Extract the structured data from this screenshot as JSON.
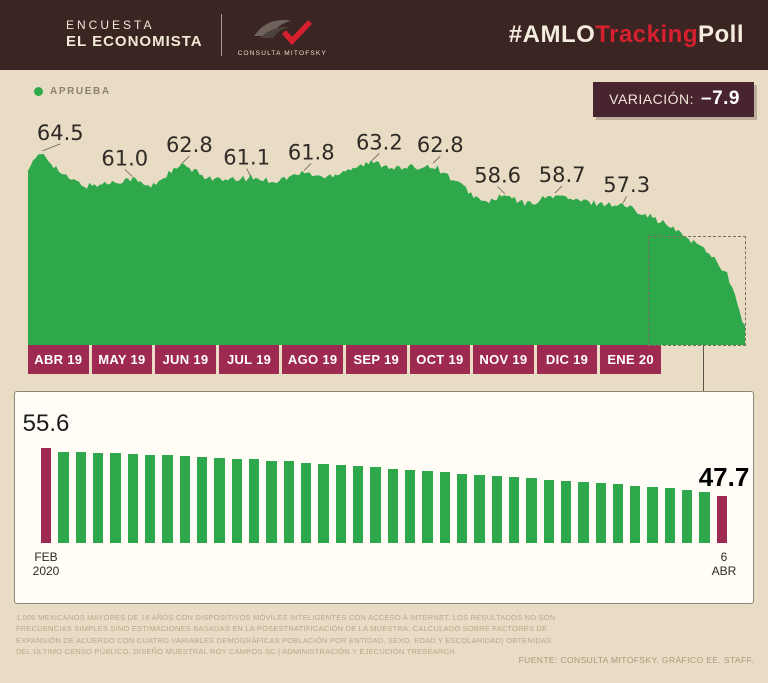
{
  "header": {
    "kicker": "ENCUESTA",
    "brand": "EL ECONOMISTA",
    "logo_caption": "CONSULTA MITOFSKY",
    "hashtag": {
      "part1": "#AMLO",
      "part2": "Tracking",
      "part3": "Poll"
    }
  },
  "legend": {
    "label": "APRUEBA",
    "color": "#2fa84c"
  },
  "variation": {
    "label": "VARIACIÓN:",
    "value": "–7.9"
  },
  "chart_data": [
    {
      "type": "area",
      "name": "AMLO approval daily tracking Apr 2019 - early 2020",
      "series_label": "APRUEBA",
      "fill_color": "#2fa84c",
      "x_labels": [
        "ABR 19",
        "MAY 19",
        "JUN 19",
        "JUL 19",
        "AGO 19",
        "SEP 19",
        "OCT 19",
        "NOV 19",
        "DIC 19",
        "ENE 20"
      ],
      "point_labels": [
        {
          "text": "64.5",
          "f": 0.045,
          "pf": 0.02
        },
        {
          "text": "61.0",
          "f": 0.135,
          "pf": 0.145
        },
        {
          "text": "62.8",
          "f": 0.225,
          "pf": 0.215
        },
        {
          "text": "61.1",
          "f": 0.305,
          "pf": 0.31
        },
        {
          "text": "61.8",
          "f": 0.395,
          "pf": 0.385
        },
        {
          "text": "63.2",
          "f": 0.49,
          "pf": 0.48
        },
        {
          "text": "62.8",
          "f": 0.575,
          "pf": 0.565
        },
        {
          "text": "58.6",
          "f": 0.655,
          "pf": 0.665
        },
        {
          "text": "58.7",
          "f": 0.745,
          "pf": 0.735
        },
        {
          "text": "57.3",
          "f": 0.835,
          "pf": 0.83
        }
      ],
      "anchors": [
        [
          0,
          62.5
        ],
        [
          0.02,
          64.5
        ],
        [
          0.05,
          61.3
        ],
        [
          0.08,
          59.9
        ],
        [
          0.11,
          60.3
        ],
        [
          0.145,
          61.0
        ],
        [
          0.17,
          59.7
        ],
        [
          0.195,
          61.6
        ],
        [
          0.215,
          62.8
        ],
        [
          0.245,
          61.3
        ],
        [
          0.275,
          60.6
        ],
        [
          0.31,
          61.1
        ],
        [
          0.345,
          60.6
        ],
        [
          0.385,
          61.8
        ],
        [
          0.415,
          61.1
        ],
        [
          0.45,
          62.4
        ],
        [
          0.48,
          63.2
        ],
        [
          0.52,
          62.3
        ],
        [
          0.565,
          62.8
        ],
        [
          0.6,
          60.3
        ],
        [
          0.635,
          57.6
        ],
        [
          0.665,
          58.6
        ],
        [
          0.695,
          57.4
        ],
        [
          0.735,
          58.7
        ],
        [
          0.765,
          57.9
        ],
        [
          0.8,
          57.5
        ],
        [
          0.83,
          57.3
        ],
        [
          0.86,
          56.2
        ],
        [
          0.89,
          54.6
        ],
        [
          0.92,
          52.8
        ],
        [
          0.95,
          50.8
        ],
        [
          0.975,
          47.8
        ],
        [
          1,
          40.5
        ]
      ],
      "ylim": [
        38,
        66
      ],
      "variation": -7.9
    },
    {
      "type": "bar",
      "name": "Daily approval Feb 2020 to Apr 6 2020",
      "bar_color": "#2fa84c",
      "highlight_color": "#9e2a52",
      "ylim": [
        40,
        58
      ],
      "values": [
        55.6,
        55.0,
        54.9,
        54.8,
        54.7,
        54.6,
        54.5,
        54.4,
        54.2,
        54.1,
        54.0,
        53.8,
        53.7,
        53.5,
        53.4,
        53.2,
        53.0,
        52.8,
        52.6,
        52.4,
        52.2,
        52.0,
        51.8,
        51.6,
        51.4,
        51.2,
        51.0,
        50.8,
        50.6,
        50.4,
        50.2,
        50.0,
        49.8,
        49.6,
        49.4,
        49.2,
        49.0,
        48.7,
        48.3,
        47.7
      ],
      "start": {
        "value": "55.6",
        "label_line1": "FEB",
        "label_line2": "2020"
      },
      "end": {
        "value": "47.7",
        "label_line1": "6",
        "label_line2": "ABR"
      }
    }
  ],
  "footnote": "1,000 MEXICANOS MAYORES DE 18 AÑOS CON DISPOSITIVOS MÓVILES INTELIGENTES CON ACCESO A INTERNET. LOS RESULTADOS NO SON FRECUENCIAS SIMPLES SINO ESTIMACIONES BASADAS EN LA POSESTRATIFICACIÓN DE LA MUESTRA, CALCULADO SOBRE FACTORES DE EXPANSIÓN DE ACUERDO CON CUATRO VARIABLES DEMOGRÁFICAS POBLACIÓN POR ENTIDAD, SEXO, EDAD Y ESCOLARIDAD) OBTENIDAS DEL ÚLTIMO CENSO PÚBLICO. DISEÑO MUESTRAL ROY CAMPOS SC | ADMINISTRACIÓN Y EJECUCIÓN TRESEARCH.",
  "source": "FUENTE: CONSULTA MITOFSKY. GRÁFICO EE. STAFF."
}
